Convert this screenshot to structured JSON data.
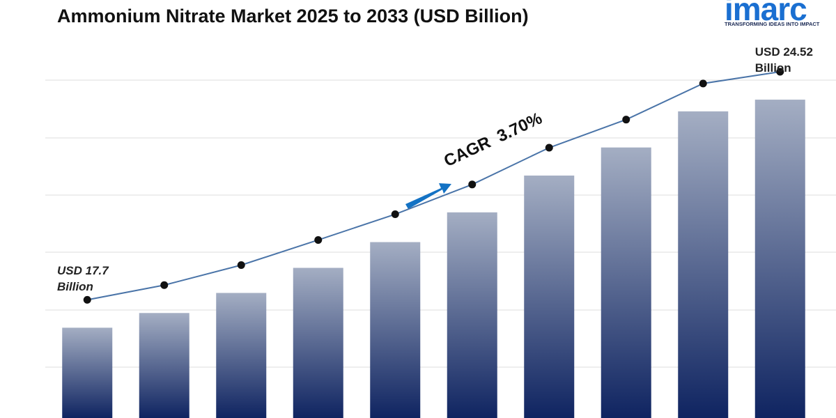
{
  "chart_data": {
    "type": "bar",
    "title": "Ammonium Nitrate Market 2025 to 2033 (USD Billion)",
    "values": [
      17.7,
      18.14,
      18.74,
      19.49,
      20.26,
      21.15,
      22.25,
      23.09,
      24.17,
      24.52
    ],
    "value_labels": [
      "USD 17.7 Billion",
      null,
      null,
      null,
      null,
      null,
      null,
      null,
      null,
      "USD 24.52 Billion"
    ],
    "ylim": [
      15,
      25
    ],
    "color": "#0f2461",
    "color_top": "#a4aec3",
    "line": true,
    "line_color": "#4a74a8",
    "annotation": "CAGR  3.70%",
    "annotation_color": "#1372c4"
  },
  "logo": {
    "name": "imarc",
    "tagline": "TRANSFORMING IDEAS INTO IMPACT"
  }
}
